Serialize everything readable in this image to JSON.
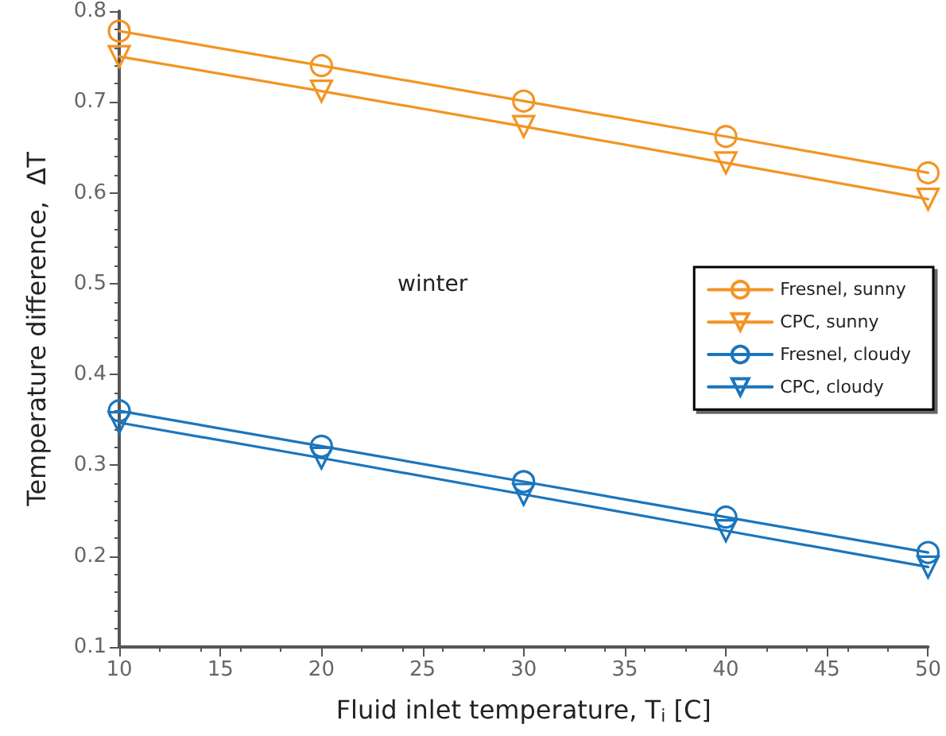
{
  "chart_data": {
    "type": "line",
    "xlabel": "Fluid inlet temperature, T$_{i}$ [C]",
    "ylabel": "Temperature difference,  ΔT",
    "annotations": [
      "winter"
    ],
    "x": [
      10,
      20,
      30,
      40,
      50
    ],
    "series": [
      {
        "name": "Fresnel, sunny",
        "color": "#f39423",
        "marker": "circle",
        "values": [
          0.778,
          0.74,
          0.701,
          0.662,
          0.622
        ]
      },
      {
        "name": "CPC, sunny",
        "color": "#f39423",
        "marker": "triangle",
        "values": [
          0.75,
          0.712,
          0.673,
          0.633,
          0.593
        ]
      },
      {
        "name": "Fresnel, cloudy",
        "color": "#1b75bc",
        "marker": "circle",
        "values": [
          0.36,
          0.321,
          0.282,
          0.243,
          0.204
        ]
      },
      {
        "name": "CPC, cloudy",
        "color": "#1b75bc",
        "marker": "triangle",
        "values": [
          0.347,
          0.308,
          0.268,
          0.228,
          0.188
        ]
      }
    ],
    "xlim": [
      10,
      50
    ],
    "xticks": [
      10,
      15,
      20,
      25,
      30,
      35,
      40,
      45,
      50
    ],
    "ylim": [
      0.1,
      0.8
    ],
    "yticks": [
      0.1,
      0.2,
      0.3,
      0.4,
      0.5,
      0.6,
      0.7,
      0.8
    ],
    "grid": false,
    "legend": "right",
    "line_style": "solid"
  }
}
